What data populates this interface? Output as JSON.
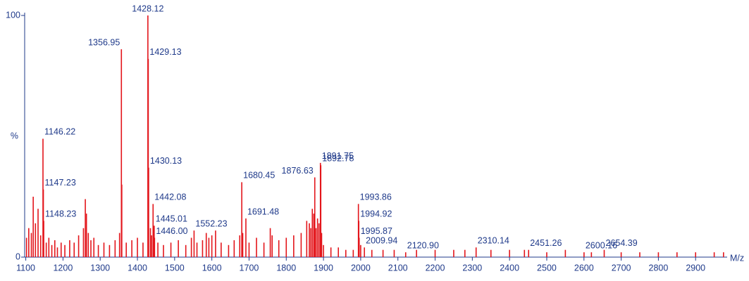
{
  "chart_data": {
    "type": "spectrum",
    "x_axis_label": "M/z",
    "y_axis_label": "%",
    "xlim": [
      1097,
      2981
    ],
    "ylim": [
      0,
      100
    ],
    "xticks": [
      1100,
      1200,
      1300,
      1400,
      1500,
      1600,
      1700,
      1800,
      1900,
      2000,
      2100,
      2200,
      2300,
      2400,
      2500,
      2600,
      2700,
      2800,
      2900
    ],
    "yticks": [
      0,
      100
    ],
    "color": "#e3151b",
    "series": [
      {
        "x": [
          1146.22,
          1147.23,
          1148.23,
          1356.95,
          1428.12,
          1429.13,
          1430.13,
          1442.08,
          1445.01,
          1446.0,
          1552.23,
          1680.45,
          1691.48,
          1876.63,
          1891.75,
          1892.78,
          1993.86,
          1994.92,
          1995.87,
          2009.94,
          2120.9,
          2310.14,
          2451.26,
          2600.16,
          2654.39
        ],
        "labels": [
          "1146.22",
          "1147.23",
          "1148.23",
          "1356.95",
          "1428.12",
          "1429.13",
          "1430.13",
          "1442.08",
          "1445.01",
          "1446.00",
          "1552.23",
          "1680.45",
          "1691.48",
          "1876.63",
          "1891.75",
          "1892.78",
          "1993.86",
          "1994.92",
          "1995.87",
          "2009.94",
          "2120.90",
          "2310.14",
          "2451.26",
          "2600.16",
          "2654.39"
        ],
        "values": [
          49,
          28,
          15,
          86,
          100,
          82,
          37,
          22,
          13,
          8,
          11,
          31,
          16,
          33,
          39,
          38,
          22,
          15,
          8,
          4,
          2,
          4,
          3,
          2,
          3
        ]
      },
      {
        "x": [
          1102,
          1108,
          1115,
          1120,
          1126,
          1133,
          1140,
          1155,
          1162,
          1170,
          1178,
          1185,
          1195,
          1205,
          1218,
          1230,
          1242,
          1255,
          1260,
          1263,
          1268,
          1275,
          1283,
          1295,
          1310,
          1325,
          1340,
          1352,
          1358,
          1370,
          1385,
          1400,
          1415,
          1435,
          1438,
          1455,
          1470,
          1490,
          1510,
          1530,
          1545,
          1560,
          1575,
          1585,
          1592,
          1600,
          1610,
          1625,
          1645,
          1660,
          1675,
          1683,
          1700,
          1720,
          1740,
          1757,
          1762,
          1780,
          1800,
          1820,
          1840,
          1855,
          1862,
          1866,
          1870,
          1874,
          1880,
          1884,
          1888,
          1895,
          1900,
          1920,
          1940,
          1960,
          1980,
          2000,
          2030,
          2060,
          2090,
          2150,
          2200,
          2250,
          2280,
          2350,
          2400,
          2440,
          2500,
          2550,
          2620,
          2700,
          2750,
          2800,
          2850,
          2900,
          2950,
          2975
        ],
        "values": [
          8,
          12,
          10,
          25,
          14,
          20,
          9,
          6,
          8,
          5,
          7,
          4,
          6,
          5,
          7,
          6,
          9,
          12,
          24,
          18,
          10,
          7,
          8,
          5,
          6,
          5,
          7,
          10,
          30,
          6,
          7,
          8,
          6,
          12,
          9,
          6,
          5,
          6,
          7,
          5,
          8,
          6,
          7,
          10,
          8,
          9,
          11,
          6,
          5,
          7,
          9,
          10,
          6,
          8,
          6,
          12,
          9,
          7,
          8,
          9,
          10,
          15,
          14,
          12,
          20,
          18,
          12,
          16,
          14,
          10,
          5,
          4,
          4,
          3,
          3,
          5,
          3,
          3,
          3,
          3,
          3,
          3,
          3,
          3,
          3,
          3,
          2,
          3,
          2,
          2,
          2,
          2,
          2,
          2,
          2,
          2
        ]
      }
    ]
  }
}
